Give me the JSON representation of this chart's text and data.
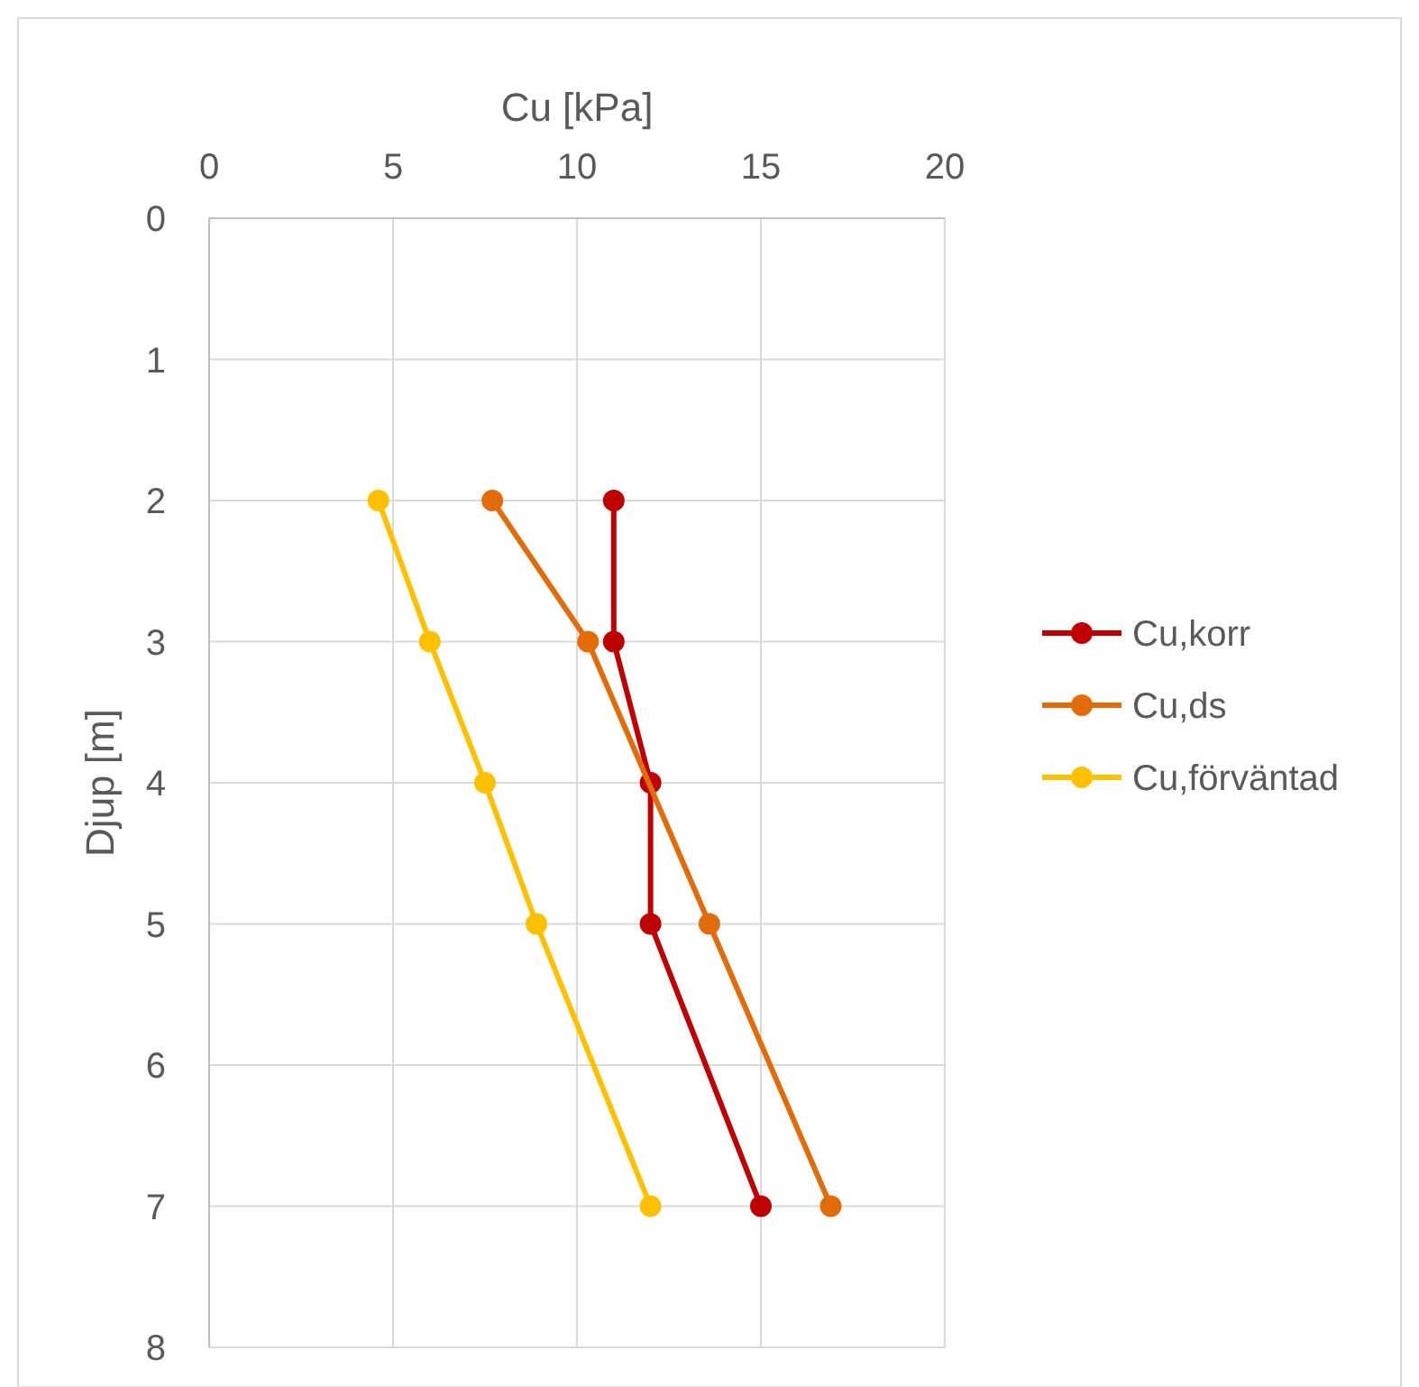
{
  "chart_data": {
    "type": "line",
    "xlabel": "Cu [kPa]",
    "ylabel": "Djup [m]",
    "xlim": [
      0,
      20
    ],
    "xticks": [
      0,
      5,
      10,
      15,
      20
    ],
    "ylim": [
      8,
      0
    ],
    "yticks": [
      0,
      1,
      2,
      3,
      4,
      5,
      6,
      7,
      8
    ],
    "grid": true,
    "legend": "right",
    "marker": "circle",
    "line_style": "solid",
    "series": [
      {
        "name": "Cu,korr",
        "color": "#c00000",
        "x": [
          11,
          11,
          12,
          12,
          15
        ],
        "values": [
          2,
          3,
          4,
          5,
          7
        ]
      },
      {
        "name": "Cu,ds",
        "color": "#e36c0a",
        "x": [
          7.7,
          10.3,
          13.6,
          16.9
        ],
        "values": [
          2,
          3,
          5,
          7
        ]
      },
      {
        "name": "Cu,förväntad",
        "color": "#ffc000",
        "x": [
          4.6,
          6,
          7.5,
          8.9,
          12
        ],
        "values": [
          2,
          3,
          4,
          5,
          7
        ]
      }
    ]
  }
}
